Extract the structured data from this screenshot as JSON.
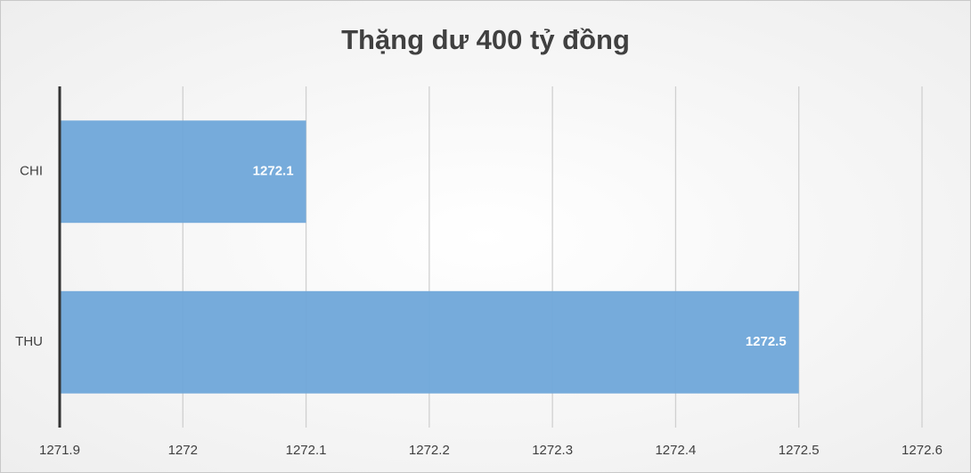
{
  "chart_data": {
    "type": "bar",
    "orientation": "horizontal",
    "title": "Thặng dư 400 tỷ đồng",
    "categories": [
      "CHI",
      "THU"
    ],
    "values": [
      1272.1,
      1272.5
    ],
    "color": "#6fa6d9",
    "xlim": [
      1271.9,
      1272.6
    ],
    "xticks": [
      1271.9,
      1272,
      1272.1,
      1272.2,
      1272.3,
      1272.4,
      1272.5,
      1272.6
    ],
    "grid": true
  }
}
